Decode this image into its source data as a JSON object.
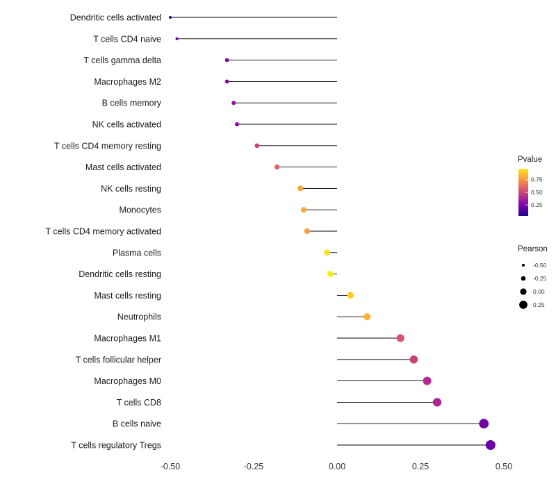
{
  "chart_data": {
    "type": "scatter",
    "variant": "lollipop",
    "title": "",
    "xlabel": "",
    "ylabel": "",
    "grid": false,
    "legend_position": "right",
    "xlim": [
      -0.55,
      0.55
    ],
    "x_ticks": [
      {
        "label": "-0.50",
        "value": -0.5
      },
      {
        "label": "-0.25",
        "value": -0.25
      },
      {
        "label": "0.00",
        "value": 0.0
      },
      {
        "label": "0.25",
        "value": 0.25
      },
      {
        "label": "0.50",
        "value": 0.5
      }
    ],
    "points": [
      {
        "label": "Dendritic cells activated",
        "pearson": -0.5,
        "pvalue": 0.05
      },
      {
        "label": "T cells CD4 naive",
        "pearson": -0.48,
        "pvalue": 0.18
      },
      {
        "label": "T cells gamma delta",
        "pearson": -0.33,
        "pvalue": 0.25
      },
      {
        "label": "Macrophages M2",
        "pearson": -0.33,
        "pvalue": 0.25
      },
      {
        "label": "B cells memory",
        "pearson": -0.31,
        "pvalue": 0.3
      },
      {
        "label": "NK cells activated",
        "pearson": -0.3,
        "pvalue": 0.3
      },
      {
        "label": "T cells CD4 memory resting",
        "pearson": -0.24,
        "pvalue": 0.48
      },
      {
        "label": "Mast cells activated",
        "pearson": -0.18,
        "pvalue": 0.6
      },
      {
        "label": "NK cells resting",
        "pearson": -0.11,
        "pvalue": 0.8
      },
      {
        "label": "Monocytes",
        "pearson": -0.1,
        "pvalue": 0.8
      },
      {
        "label": "T cells CD4 memory activated",
        "pearson": -0.09,
        "pvalue": 0.78
      },
      {
        "label": "Plasma cells",
        "pearson": -0.03,
        "pvalue": 0.95
      },
      {
        "label": "Dendritic cells resting",
        "pearson": -0.02,
        "pvalue": 0.97
      },
      {
        "label": "Mast cells resting",
        "pearson": 0.04,
        "pvalue": 0.9
      },
      {
        "label": "Neutrophils",
        "pearson": 0.09,
        "pvalue": 0.83
      },
      {
        "label": "Macrophages M1",
        "pearson": 0.19,
        "pvalue": 0.55
      },
      {
        "label": "T cells follicular helper",
        "pearson": 0.23,
        "pvalue": 0.48
      },
      {
        "label": "Macrophages M0",
        "pearson": 0.27,
        "pvalue": 0.4
      },
      {
        "label": "T cells CD8",
        "pearson": 0.3,
        "pvalue": 0.38
      },
      {
        "label": "B cells naive",
        "pearson": 0.44,
        "pvalue": 0.22
      },
      {
        "label": "T cells regulatory  Tregs",
        "pearson": 0.46,
        "pvalue": 0.2
      }
    ],
    "legends": {
      "pvalue": {
        "title": "Pvalue",
        "tick_labels": [
          "0.75",
          "0.50",
          "0.25"
        ],
        "tick_values": [
          0.75,
          0.5,
          0.25
        ],
        "range": [
          0.03,
          0.97
        ]
      },
      "pearson": {
        "title": "Pearson",
        "items": [
          {
            "label": "-0.50",
            "value": -0.5
          },
          {
            "label": "-0.25",
            "value": -0.25
          },
          {
            "label": "0.00",
            "value": 0.0
          },
          {
            "label": "0.25",
            "value": 0.25
          }
        ]
      }
    },
    "colormap": {
      "name": "plasma",
      "stops": [
        [
          0.0,
          "#0d0887"
        ],
        [
          0.1,
          "#41049d"
        ],
        [
          0.2,
          "#6a00a8"
        ],
        [
          0.3,
          "#8f0da4"
        ],
        [
          0.4,
          "#b12a90"
        ],
        [
          0.5,
          "#cc4778"
        ],
        [
          0.6,
          "#e16462"
        ],
        [
          0.7,
          "#f2844b"
        ],
        [
          0.8,
          "#fca636"
        ],
        [
          0.9,
          "#fcce25"
        ],
        [
          1.0,
          "#f0f921"
        ]
      ]
    },
    "style": {
      "stem_color": "#000000",
      "background": "#ffffff",
      "label_color": "#1a1a1a",
      "tick_color": "#333333",
      "legend_title_color": "#1a1a1a",
      "legend_dot_color": "#000000"
    }
  }
}
